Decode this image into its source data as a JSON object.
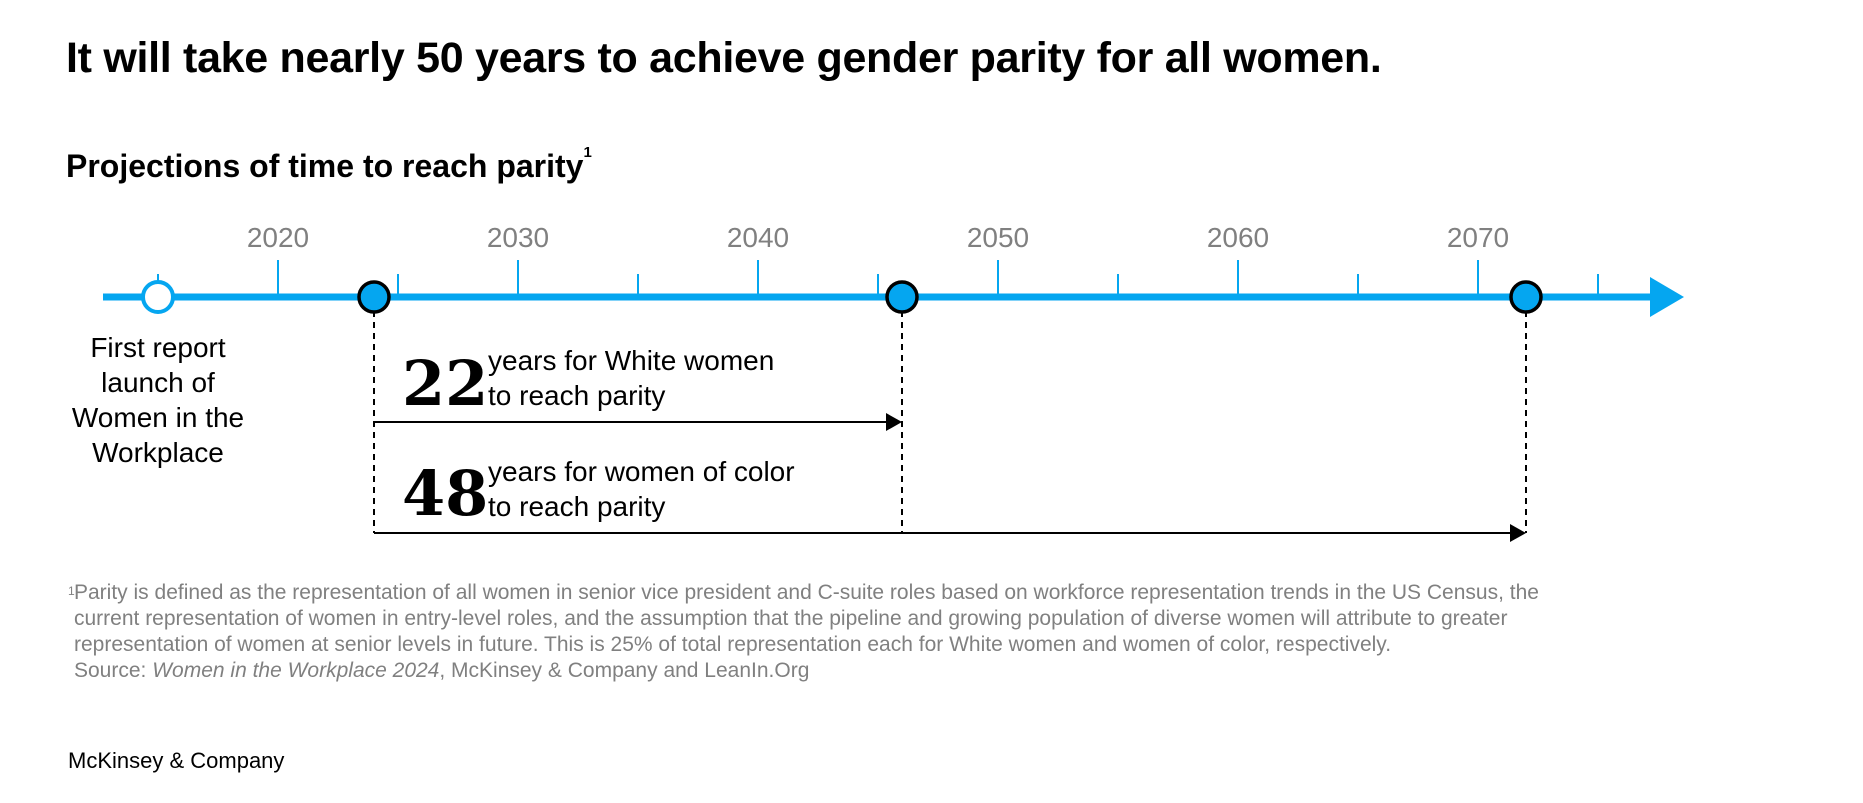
{
  "title": "It will take nearly 50 years to achieve gender parity for all women.",
  "subtitle": "Projections of time to reach parity",
  "subtitle_footnote_marker": "1",
  "chart_data": {
    "type": "timeline",
    "x_range": [
      2013,
      2075
    ],
    "tick_labels": [
      2020,
      2030,
      2040,
      2050,
      2060,
      2070
    ],
    "minor_ticks": [
      2015,
      2020,
      2025,
      2030,
      2035,
      2040,
      2045,
      2050,
      2055,
      2060,
      2065,
      2070,
      2075
    ],
    "events": [
      {
        "year": 2015,
        "label": "First report launch of Women in the Workplace",
        "style": "hollow"
      },
      {
        "year": 2024,
        "label": "",
        "style": "filled"
      },
      {
        "year": 2046,
        "label": "",
        "style": "filled"
      },
      {
        "year": 2072,
        "label": "",
        "style": "filled"
      }
    ],
    "spans": [
      {
        "from": 2024,
        "to": 2046,
        "years": "22",
        "line1": "years for White women",
        "line2": "to reach parity"
      },
      {
        "from": 2024,
        "to": 2072,
        "years": "48",
        "line1": "years for women of color",
        "line2": "to reach parity"
      }
    ],
    "colors": {
      "axis": "#05a6f0",
      "marker_fill": "#05a6f0",
      "marker_stroke": "#000000",
      "tick": "#05a6f0",
      "label": "#808080",
      "arrow": "#000000"
    }
  },
  "first_report_lines": [
    "First report",
    "launch of",
    "Women in the",
    "Workplace"
  ],
  "footnote": {
    "marker": "1",
    "line1": "Parity is defined as the representation of all women in senior vice president and C-suite roles based on workforce representation trends in the US Census, the",
    "line2": "current representation of women in entry-level roles, and the assumption that the pipeline and growing population of diverse women will attribute to greater",
    "line3": "representation of women at senior levels in future. This is 25% of total representation each for White women and women of color, respectively.",
    "source_prefix": "Source: ",
    "source_title": "Women in the Workplace 2024",
    "source_suffix": ", McKinsey & Company and LeanIn.Org"
  },
  "brand": "McKinsey & Company"
}
